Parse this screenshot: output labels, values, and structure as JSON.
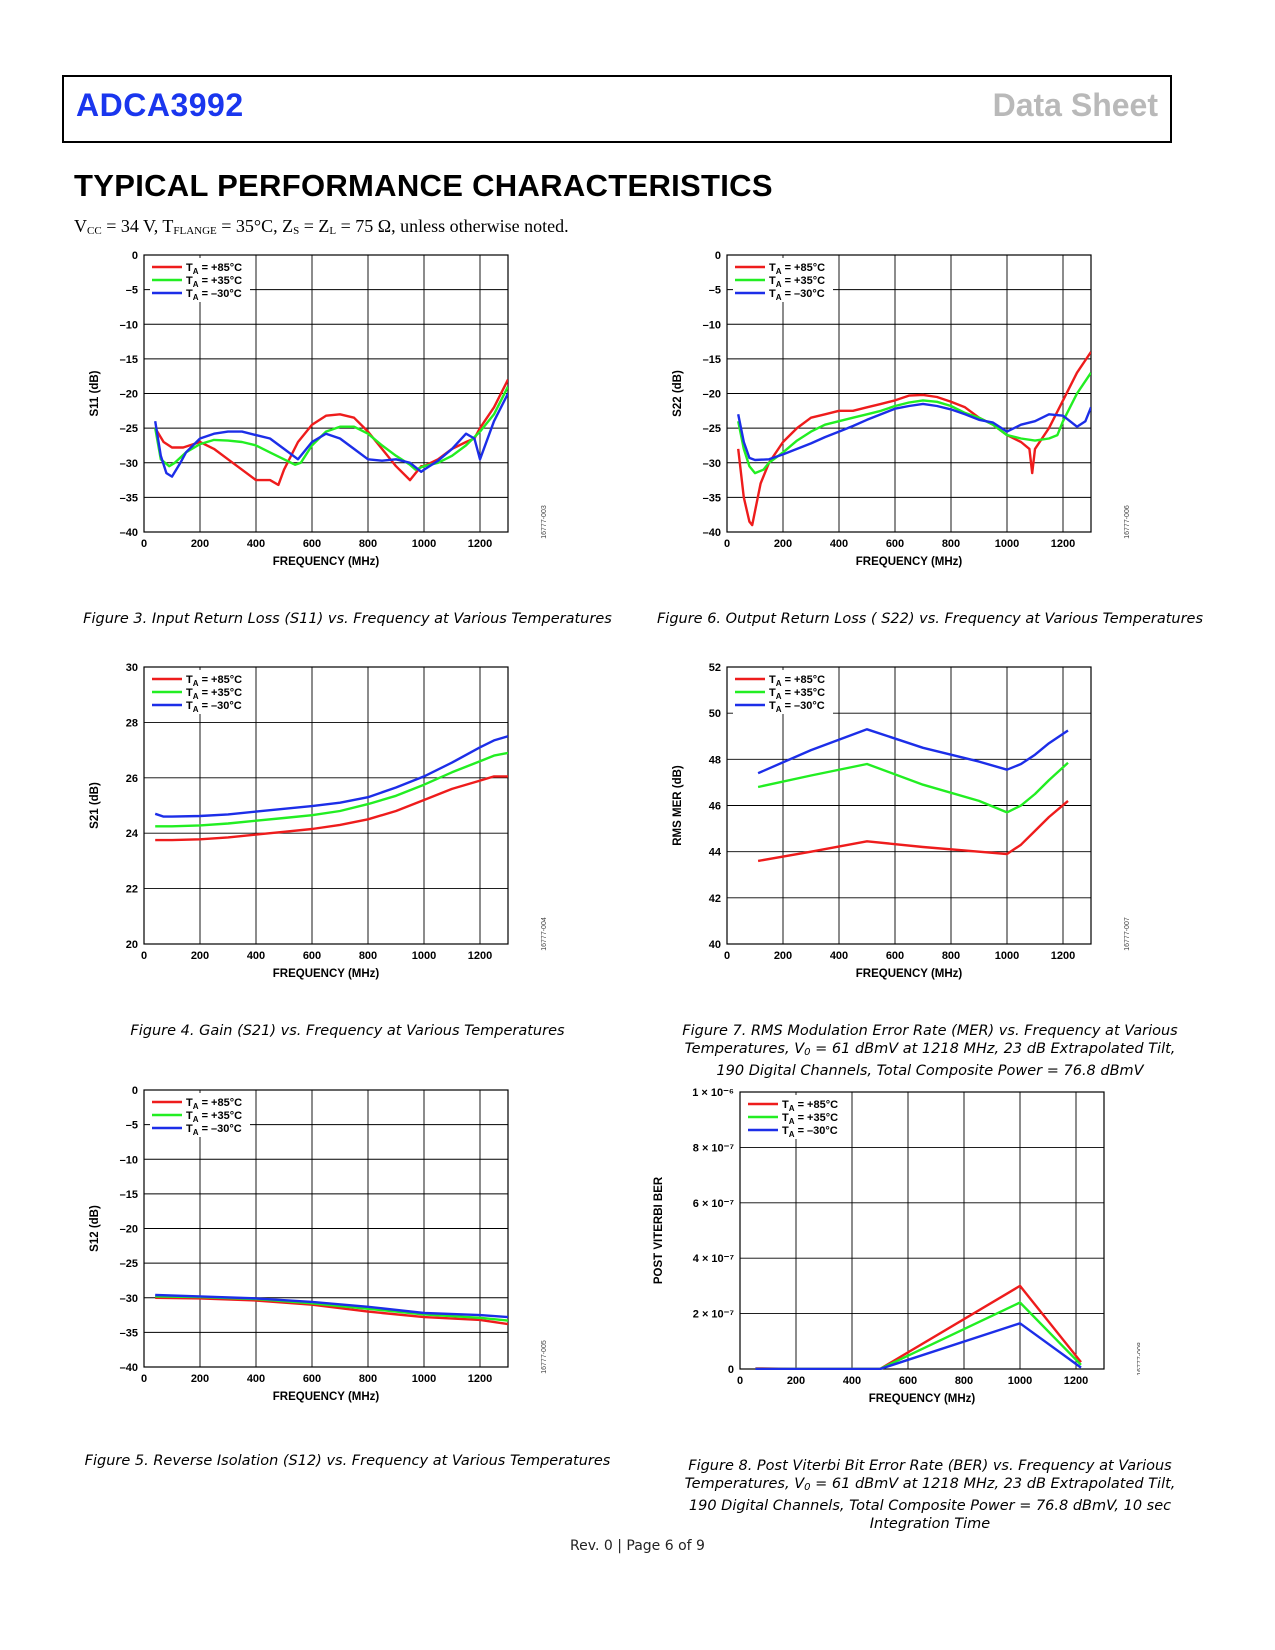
{
  "header": {
    "product": "ADCA3992",
    "doc_type": "Data Sheet"
  },
  "section_title": "TYPICAL PERFORMANCE CHARACTERISTICS",
  "conditions": {
    "vcc_sym": "V",
    "vcc_sub": "CC",
    "vcc_val": " = 34 V, T",
    "flange_sub": "FLANGE",
    "flange_val": " = 35°C, Z",
    "zs_sub": "S",
    "zs_mid": " = Z",
    "zl_sub": "L",
    "tail": " = 75 Ω, unless otherwise noted."
  },
  "colors": {
    "red": "#ee1c1c",
    "green": "#22ee22",
    "blue": "#1c2ee8",
    "header_blue": "#1a36ee"
  },
  "footer": "Rev. 0 | Page 6 of 9",
  "captions": {
    "fig3": "Figure 3. Input Return Loss (S11) vs. Frequency at Various Temperatures",
    "fig4": "Figure 4. Gain (S21) vs. Frequency at Various Temperatures",
    "fig5": "Figure 5. Reverse Isolation (S12) vs. Frequency at Various Temperatures",
    "fig6": "Figure 6. Output Return Loss ( S22) vs. Frequency at Various Temperatures",
    "fig7_l1": "Figure 7. RMS Modulation Error Rate (MER) vs. Frequency at Various",
    "fig7_l2a": "Temperatures, V",
    "fig7_l2sub": "0",
    "fig7_l2b": " = 61 dBmV at 1218 MHz, 23 dB Extrapolated Tilt,",
    "fig7_l3": "190 Digital Channels, Total Composite Power = 76.8 dBmV",
    "fig8_l1": "Figure 8. Post Viterbi Bit Error Rate (BER) vs. Frequency at Various",
    "fig8_l2a": "Temperatures, V",
    "fig8_l2sub": "0",
    "fig8_l2b": " = 61 dBmV at 1218 MHz, 23 dB Extrapolated Tilt,",
    "fig8_l3": "190 Digital Channels, Total Composite Power = 76.8 dBmV, 10 sec",
    "fig8_l4": "Integration Time"
  },
  "chart_data": [
    {
      "id": "fig3",
      "type": "line",
      "ylabel": "S11 (dB)",
      "xlabel": "FREQUENCY (MHz)",
      "code": "16777-003",
      "xlim": [
        0,
        1300
      ],
      "ylim": [
        -40,
        0
      ],
      "xticks": [
        0,
        200,
        400,
        600,
        800,
        1000,
        1200
      ],
      "yticks": [
        0,
        -5,
        -10,
        -15,
        -20,
        -25,
        -30,
        -35,
        -40
      ],
      "ytick_labels": [
        "0",
        "–5",
        "–10",
        "–15",
        "–20",
        "–25",
        "–30",
        "–35",
        "–40"
      ],
      "legend": [
        "+85°C",
        "+35°C",
        "–30°C"
      ],
      "series": [
        {
          "name": "+85°C",
          "color": "#ee1c1c",
          "x": [
            40,
            70,
            100,
            140,
            200,
            250,
            300,
            350,
            400,
            450,
            480,
            500,
            550,
            600,
            650,
            700,
            750,
            800,
            850,
            900,
            950,
            970,
            990,
            1000,
            1050,
            1100,
            1150,
            1180,
            1200,
            1250,
            1300
          ],
          "y": [
            -25,
            -27,
            -27.8,
            -27.8,
            -27,
            -28,
            -29.5,
            -31,
            -32.5,
            -32.5,
            -33.2,
            -31,
            -27,
            -24.5,
            -23.2,
            -23,
            -23.5,
            -25.5,
            -28,
            -30.5,
            -32.5,
            -31.5,
            -30.5,
            -30.5,
            -29.5,
            -28,
            -27,
            -26.5,
            -25,
            -22,
            -18
          ]
        },
        {
          "name": "+35°C",
          "color": "#22ee22",
          "x": [
            40,
            60,
            90,
            110,
            150,
            200,
            250,
            300,
            350,
            400,
            450,
            500,
            540,
            560,
            600,
            650,
            700,
            750,
            800,
            850,
            900,
            950,
            970,
            1000,
            1050,
            1100,
            1150,
            1200,
            1250,
            1300
          ],
          "y": [
            -25,
            -29.5,
            -30.5,
            -30,
            -28.5,
            -27.3,
            -26.7,
            -26.8,
            -27,
            -27.5,
            -28.5,
            -29.5,
            -30.3,
            -30,
            -27.5,
            -25.5,
            -24.8,
            -24.8,
            -25.8,
            -27.5,
            -29,
            -30.3,
            -31,
            -30.5,
            -30,
            -29,
            -27.5,
            -25.5,
            -23,
            -19
          ]
        },
        {
          "name": "–30°C",
          "color": "#1c2ee8",
          "x": [
            40,
            60,
            80,
            100,
            130,
            150,
            200,
            250,
            300,
            350,
            400,
            450,
            500,
            550,
            600,
            650,
            700,
            750,
            800,
            850,
            900,
            950,
            990,
            1000,
            1050,
            1100,
            1150,
            1180,
            1200,
            1250,
            1300
          ],
          "y": [
            -24,
            -29,
            -31.5,
            -32,
            -30,
            -28.5,
            -26.5,
            -25.8,
            -25.5,
            -25.5,
            -26,
            -26.5,
            -28,
            -29.5,
            -27,
            -25.8,
            -26.5,
            -28,
            -29.5,
            -29.7,
            -29.5,
            -30,
            -31.3,
            -31,
            -29.7,
            -28,
            -25.8,
            -26.5,
            -29.5,
            -24,
            -20
          ]
        }
      ]
    },
    {
      "id": "fig4",
      "type": "line",
      "ylabel": "S21 (dB)",
      "xlabel": "FREQUENCY (MHz)",
      "code": "16777-004",
      "xlim": [
        0,
        1300
      ],
      "ylim": [
        20,
        30
      ],
      "xticks": [
        0,
        200,
        400,
        600,
        800,
        1000,
        1200
      ],
      "yticks": [
        20,
        22,
        24,
        26,
        28,
        30
      ],
      "ytick_labels": [
        "20",
        "22",
        "24",
        "26",
        "28",
        "30"
      ],
      "legend": [
        "+85°C",
        "+35°C",
        "–30°C"
      ],
      "series": [
        {
          "name": "+85°C",
          "color": "#ee1c1c",
          "x": [
            40,
            100,
            200,
            300,
            400,
            500,
            600,
            700,
            800,
            900,
            1000,
            1100,
            1200,
            1250,
            1300
          ],
          "y": [
            23.75,
            23.75,
            23.78,
            23.85,
            23.95,
            24.05,
            24.15,
            24.3,
            24.5,
            24.8,
            25.2,
            25.6,
            25.9,
            26.05,
            26.05
          ]
        },
        {
          "name": "+35°C",
          "color": "#22ee22",
          "x": [
            40,
            100,
            200,
            300,
            400,
            500,
            600,
            700,
            800,
            900,
            1000,
            1100,
            1200,
            1250,
            1300
          ],
          "y": [
            24.25,
            24.25,
            24.28,
            24.35,
            24.45,
            24.55,
            24.65,
            24.8,
            25.05,
            25.35,
            25.75,
            26.2,
            26.6,
            26.8,
            26.9
          ]
        },
        {
          "name": "–30°C",
          "color": "#1c2ee8",
          "x": [
            40,
            70,
            100,
            200,
            300,
            400,
            500,
            600,
            700,
            800,
            900,
            1000,
            1100,
            1200,
            1250,
            1300
          ],
          "y": [
            24.7,
            24.6,
            24.6,
            24.62,
            24.68,
            24.78,
            24.88,
            24.98,
            25.1,
            25.3,
            25.65,
            26.05,
            26.55,
            27.1,
            27.35,
            27.5
          ]
        }
      ]
    },
    {
      "id": "fig5",
      "type": "line",
      "ylabel": "S12 (dB)",
      "xlabel": "FREQUENCY (MHz)",
      "code": "16777-005",
      "xlim": [
        0,
        1300
      ],
      "ylim": [
        -40,
        0
      ],
      "xticks": [
        0,
        200,
        400,
        600,
        800,
        1000,
        1200
      ],
      "yticks": [
        0,
        -5,
        -10,
        -15,
        -20,
        -25,
        -30,
        -35,
        -40
      ],
      "ytick_labels": [
        "0",
        "–5",
        "–10",
        "–15",
        "–20",
        "–25",
        "–30",
        "–35",
        "–40"
      ],
      "legend": [
        "+85°C",
        "+35°C",
        "–30°C"
      ],
      "series": [
        {
          "name": "+85°C",
          "color": "#ee1c1c",
          "x": [
            40,
            200,
            400,
            600,
            800,
            1000,
            1200,
            1300
          ],
          "y": [
            -30,
            -30.1,
            -30.4,
            -31,
            -32,
            -32.8,
            -33.2,
            -33.8
          ]
        },
        {
          "name": "+35°C",
          "color": "#22ee22",
          "x": [
            40,
            200,
            400,
            600,
            800,
            1000,
            1200,
            1300
          ],
          "y": [
            -29.8,
            -29.9,
            -30.2,
            -30.8,
            -31.6,
            -32.4,
            -32.9,
            -33.3
          ]
        },
        {
          "name": "–30°C",
          "color": "#1c2ee8",
          "x": [
            40,
            200,
            400,
            600,
            800,
            1000,
            1200,
            1300
          ],
          "y": [
            -29.6,
            -29.8,
            -30.1,
            -30.6,
            -31.3,
            -32.2,
            -32.5,
            -32.8
          ]
        }
      ]
    },
    {
      "id": "fig6",
      "type": "line",
      "ylabel": "S22 (dB)",
      "xlabel": "FREQUENCY (MHz)",
      "code": "16777-006",
      "xlim": [
        0,
        1300
      ],
      "ylim": [
        -40,
        0
      ],
      "xticks": [
        0,
        200,
        400,
        600,
        800,
        1000,
        1200
      ],
      "yticks": [
        0,
        -5,
        -10,
        -15,
        -20,
        -25,
        -30,
        -35,
        -40
      ],
      "ytick_labels": [
        "0",
        "–5",
        "–10",
        "–15",
        "–20",
        "–25",
        "–30",
        "–35",
        "–40"
      ],
      "legend": [
        "+85°C",
        "+35°C",
        "–30°C"
      ],
      "series": [
        {
          "name": "+85°C",
          "color": "#ee1c1c",
          "x": [
            40,
            60,
            80,
            90,
            100,
            120,
            150,
            200,
            250,
            300,
            350,
            400,
            450,
            500,
            550,
            600,
            650,
            700,
            750,
            800,
            850,
            900,
            950,
            1000,
            1050,
            1080,
            1090,
            1100,
            1150,
            1200,
            1250,
            1300
          ],
          "y": [
            -28,
            -35,
            -38.5,
            -39,
            -37,
            -33,
            -30,
            -27,
            -25,
            -23.5,
            -23,
            -22.5,
            -22.5,
            -22,
            -21.5,
            -21,
            -20.3,
            -20.2,
            -20.5,
            -21.2,
            -22,
            -23.5,
            -24.5,
            -26,
            -27,
            -28,
            -31.5,
            -28,
            -25,
            -21,
            -17,
            -14
          ]
        },
        {
          "name": "+35°C",
          "color": "#22ee22",
          "x": [
            40,
            60,
            80,
            100,
            130,
            150,
            200,
            250,
            300,
            350,
            400,
            450,
            500,
            550,
            600,
            650,
            700,
            750,
            800,
            850,
            900,
            950,
            1000,
            1050,
            1100,
            1150,
            1180,
            1200,
            1250,
            1300
          ],
          "y": [
            -24,
            -28,
            -30.5,
            -31.5,
            -31,
            -30,
            -28.5,
            -26.8,
            -25.5,
            -24.5,
            -24,
            -23.5,
            -23,
            -22.5,
            -21.8,
            -21.3,
            -21,
            -21.2,
            -21.8,
            -22.8,
            -23.5,
            -24.5,
            -26,
            -26.5,
            -26.8,
            -26.5,
            -26,
            -24,
            -20,
            -17
          ]
        },
        {
          "name": "–30°C",
          "color": "#1c2ee8",
          "x": [
            40,
            60,
            80,
            100,
            150,
            200,
            250,
            300,
            350,
            400,
            450,
            500,
            550,
            600,
            650,
            700,
            750,
            800,
            850,
            900,
            950,
            1000,
            1050,
            1100,
            1150,
            1200,
            1250,
            1280,
            1300
          ],
          "y": [
            -23,
            -27,
            -29.3,
            -29.6,
            -29.5,
            -28.8,
            -28,
            -27.2,
            -26.3,
            -25.5,
            -24.7,
            -23.8,
            -23,
            -22.2,
            -21.8,
            -21.5,
            -21.8,
            -22.3,
            -23,
            -23.8,
            -24.2,
            -25.5,
            -24.5,
            -24,
            -23,
            -23.2,
            -24.8,
            -24,
            -22
          ]
        }
      ]
    },
    {
      "id": "fig7",
      "type": "line",
      "ylabel": "RMS MER (dB)",
      "xlabel": "FREQUENCY (MHz)",
      "code": "16777-007",
      "xlim": [
        0,
        1300
      ],
      "ylim": [
        40,
        52
      ],
      "xticks": [
        0,
        200,
        400,
        600,
        800,
        1000,
        1200
      ],
      "yticks": [
        40,
        42,
        44,
        46,
        48,
        50,
        52
      ],
      "ytick_labels": [
        "40",
        "42",
        "44",
        "46",
        "48",
        "50",
        "52"
      ],
      "legend": [
        "+85°C",
        "+35°C",
        "–30°C"
      ],
      "series": [
        {
          "name": "+85°C",
          "color": "#ee1c1c",
          "x": [
            111,
            300,
            500,
            700,
            900,
            1000,
            1050,
            1100,
            1150,
            1218
          ],
          "y": [
            43.6,
            44,
            44.45,
            44.2,
            44,
            43.9,
            44.3,
            44.9,
            45.5,
            46.2
          ]
        },
        {
          "name": "+35°C",
          "color": "#22ee22",
          "x": [
            111,
            300,
            500,
            700,
            900,
            1000,
            1050,
            1100,
            1150,
            1218
          ],
          "y": [
            46.8,
            47.3,
            47.8,
            46.9,
            46.2,
            45.7,
            46,
            46.5,
            47.1,
            47.85
          ]
        },
        {
          "name": "–30°C",
          "color": "#1c2ee8",
          "x": [
            111,
            300,
            500,
            700,
            900,
            1000,
            1050,
            1100,
            1150,
            1218
          ],
          "y": [
            47.4,
            48.4,
            49.3,
            48.5,
            47.9,
            47.55,
            47.8,
            48.2,
            48.7,
            49.25
          ]
        }
      ]
    },
    {
      "id": "fig8",
      "type": "line",
      "ylabel": "POST VITERBI BER",
      "xlabel": "FREQUENCY (MHz)",
      "code": "16777-008",
      "xlim": [
        0,
        1300
      ],
      "ylim": [
        0,
        1e-06
      ],
      "xticks": [
        0,
        200,
        400,
        600,
        800,
        1000,
        1200
      ],
      "yticks": [
        0,
        2e-07,
        4e-07,
        6e-07,
        8e-07,
        1e-06
      ],
      "ytick_labels": [
        "0",
        "2 × 10⁻⁷",
        "4 × 10⁻⁷",
        "6 × 10⁻⁷",
        "8 × 10⁻⁷",
        "1 × 10⁻⁶"
      ],
      "legend": [
        "+85°C",
        "+35°C",
        "–30°C"
      ],
      "series": [
        {
          "name": "+85°C",
          "color": "#ee1c1c",
          "x": [
            55,
            200,
            500,
            1000,
            1218
          ],
          "y": [
            2e-09,
            0,
            0,
            3e-07,
            2.5e-08
          ]
        },
        {
          "name": "+35°C",
          "color": "#22ee22",
          "x": [
            55,
            200,
            500,
            1000,
            1218
          ],
          "y": [
            0,
            0,
            0,
            2.4e-07,
            1.5e-08
          ]
        },
        {
          "name": "–30°C",
          "color": "#1c2ee8",
          "x": [
            55,
            200,
            500,
            1000,
            1218
          ],
          "y": [
            0,
            0,
            0,
            1.65e-07,
            5e-09
          ]
        }
      ]
    }
  ]
}
